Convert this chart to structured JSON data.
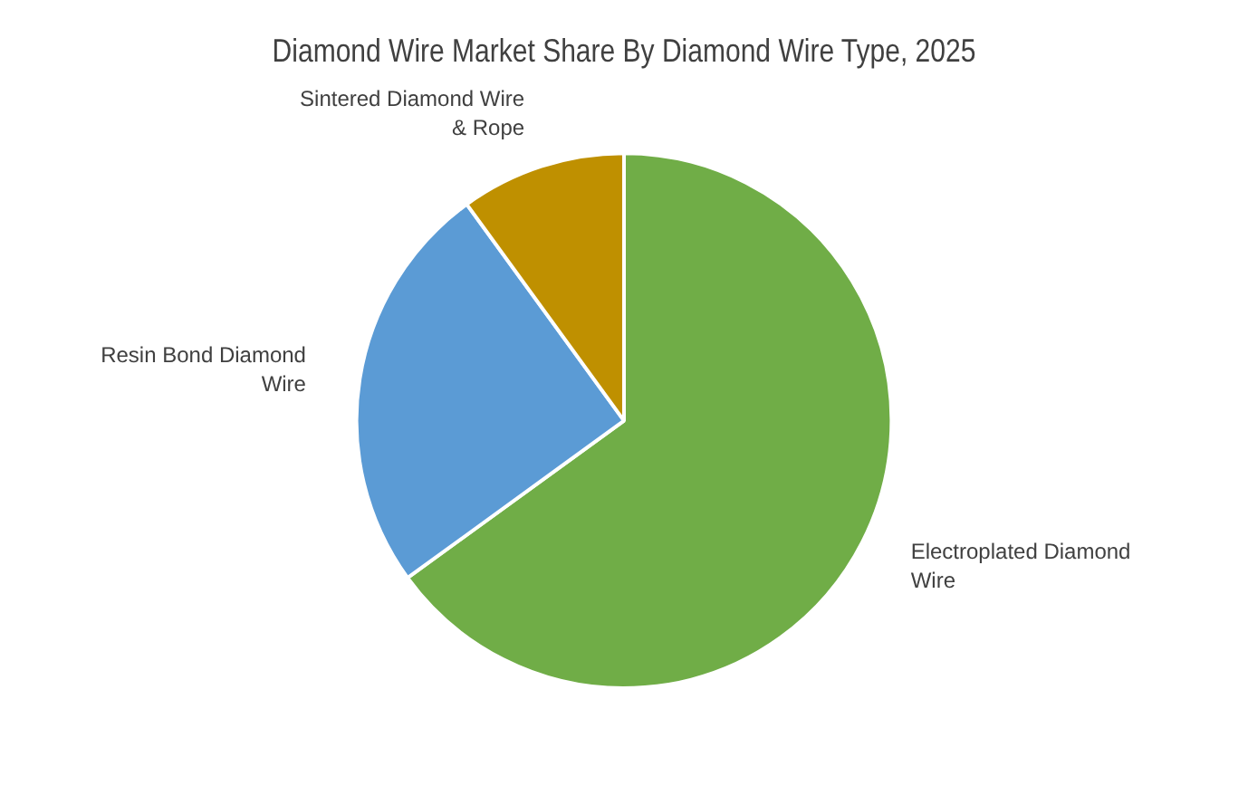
{
  "chart_data": {
    "type": "pie",
    "title": "Diamond Wire Market Share By Diamond Wire Type, 2025",
    "categories": [
      "Electroplated Diamond Wire",
      "Resin Bond Diamond Wire",
      "Sintered Diamond Wire & Rope"
    ],
    "values": [
      65,
      25,
      10
    ],
    "colors": [
      "#70ad47",
      "#5b9bd5",
      "#bf9000"
    ],
    "legend": false
  }
}
